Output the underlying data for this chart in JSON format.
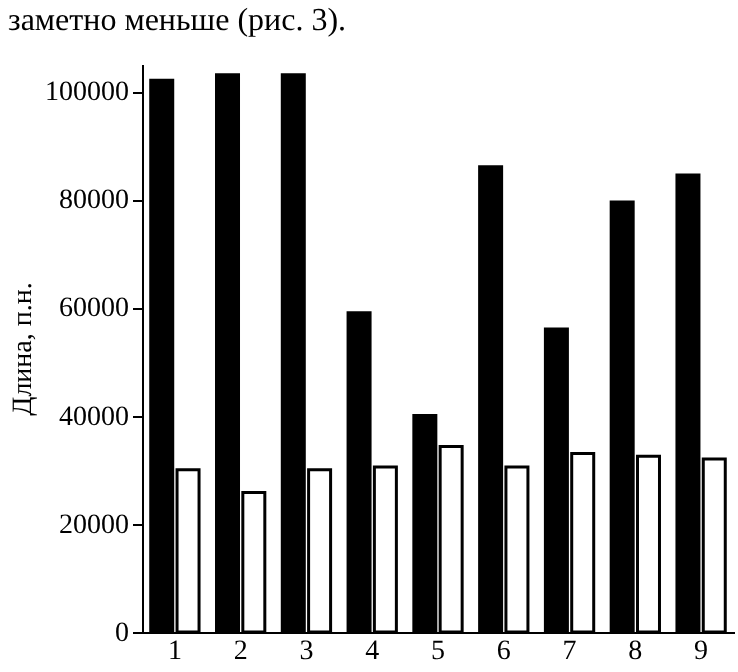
{
  "chart_data": {
    "type": "bar",
    "annotations": [
      "заметно меньше (рис. 3)."
    ],
    "ylabel": "Длина, п.н.",
    "categories": [
      "1",
      "2",
      "3",
      "4",
      "5",
      "6",
      "7",
      "8",
      "9"
    ],
    "series": [
      {
        "color": "#000000",
        "values": [
          102000,
          103000,
          103000,
          59000,
          40000,
          86000,
          56000,
          79500,
          84500
        ]
      },
      {
        "color": "#ffffff",
        "values": [
          30000,
          25800,
          30000,
          30500,
          34300,
          30500,
          33000,
          32500,
          32000
        ]
      }
    ],
    "ylim": [
      0,
      105000
    ],
    "yticks": [
      0,
      20000,
      40000,
      60000,
      80000,
      100000
    ],
    "grid": false,
    "legend": false
  }
}
